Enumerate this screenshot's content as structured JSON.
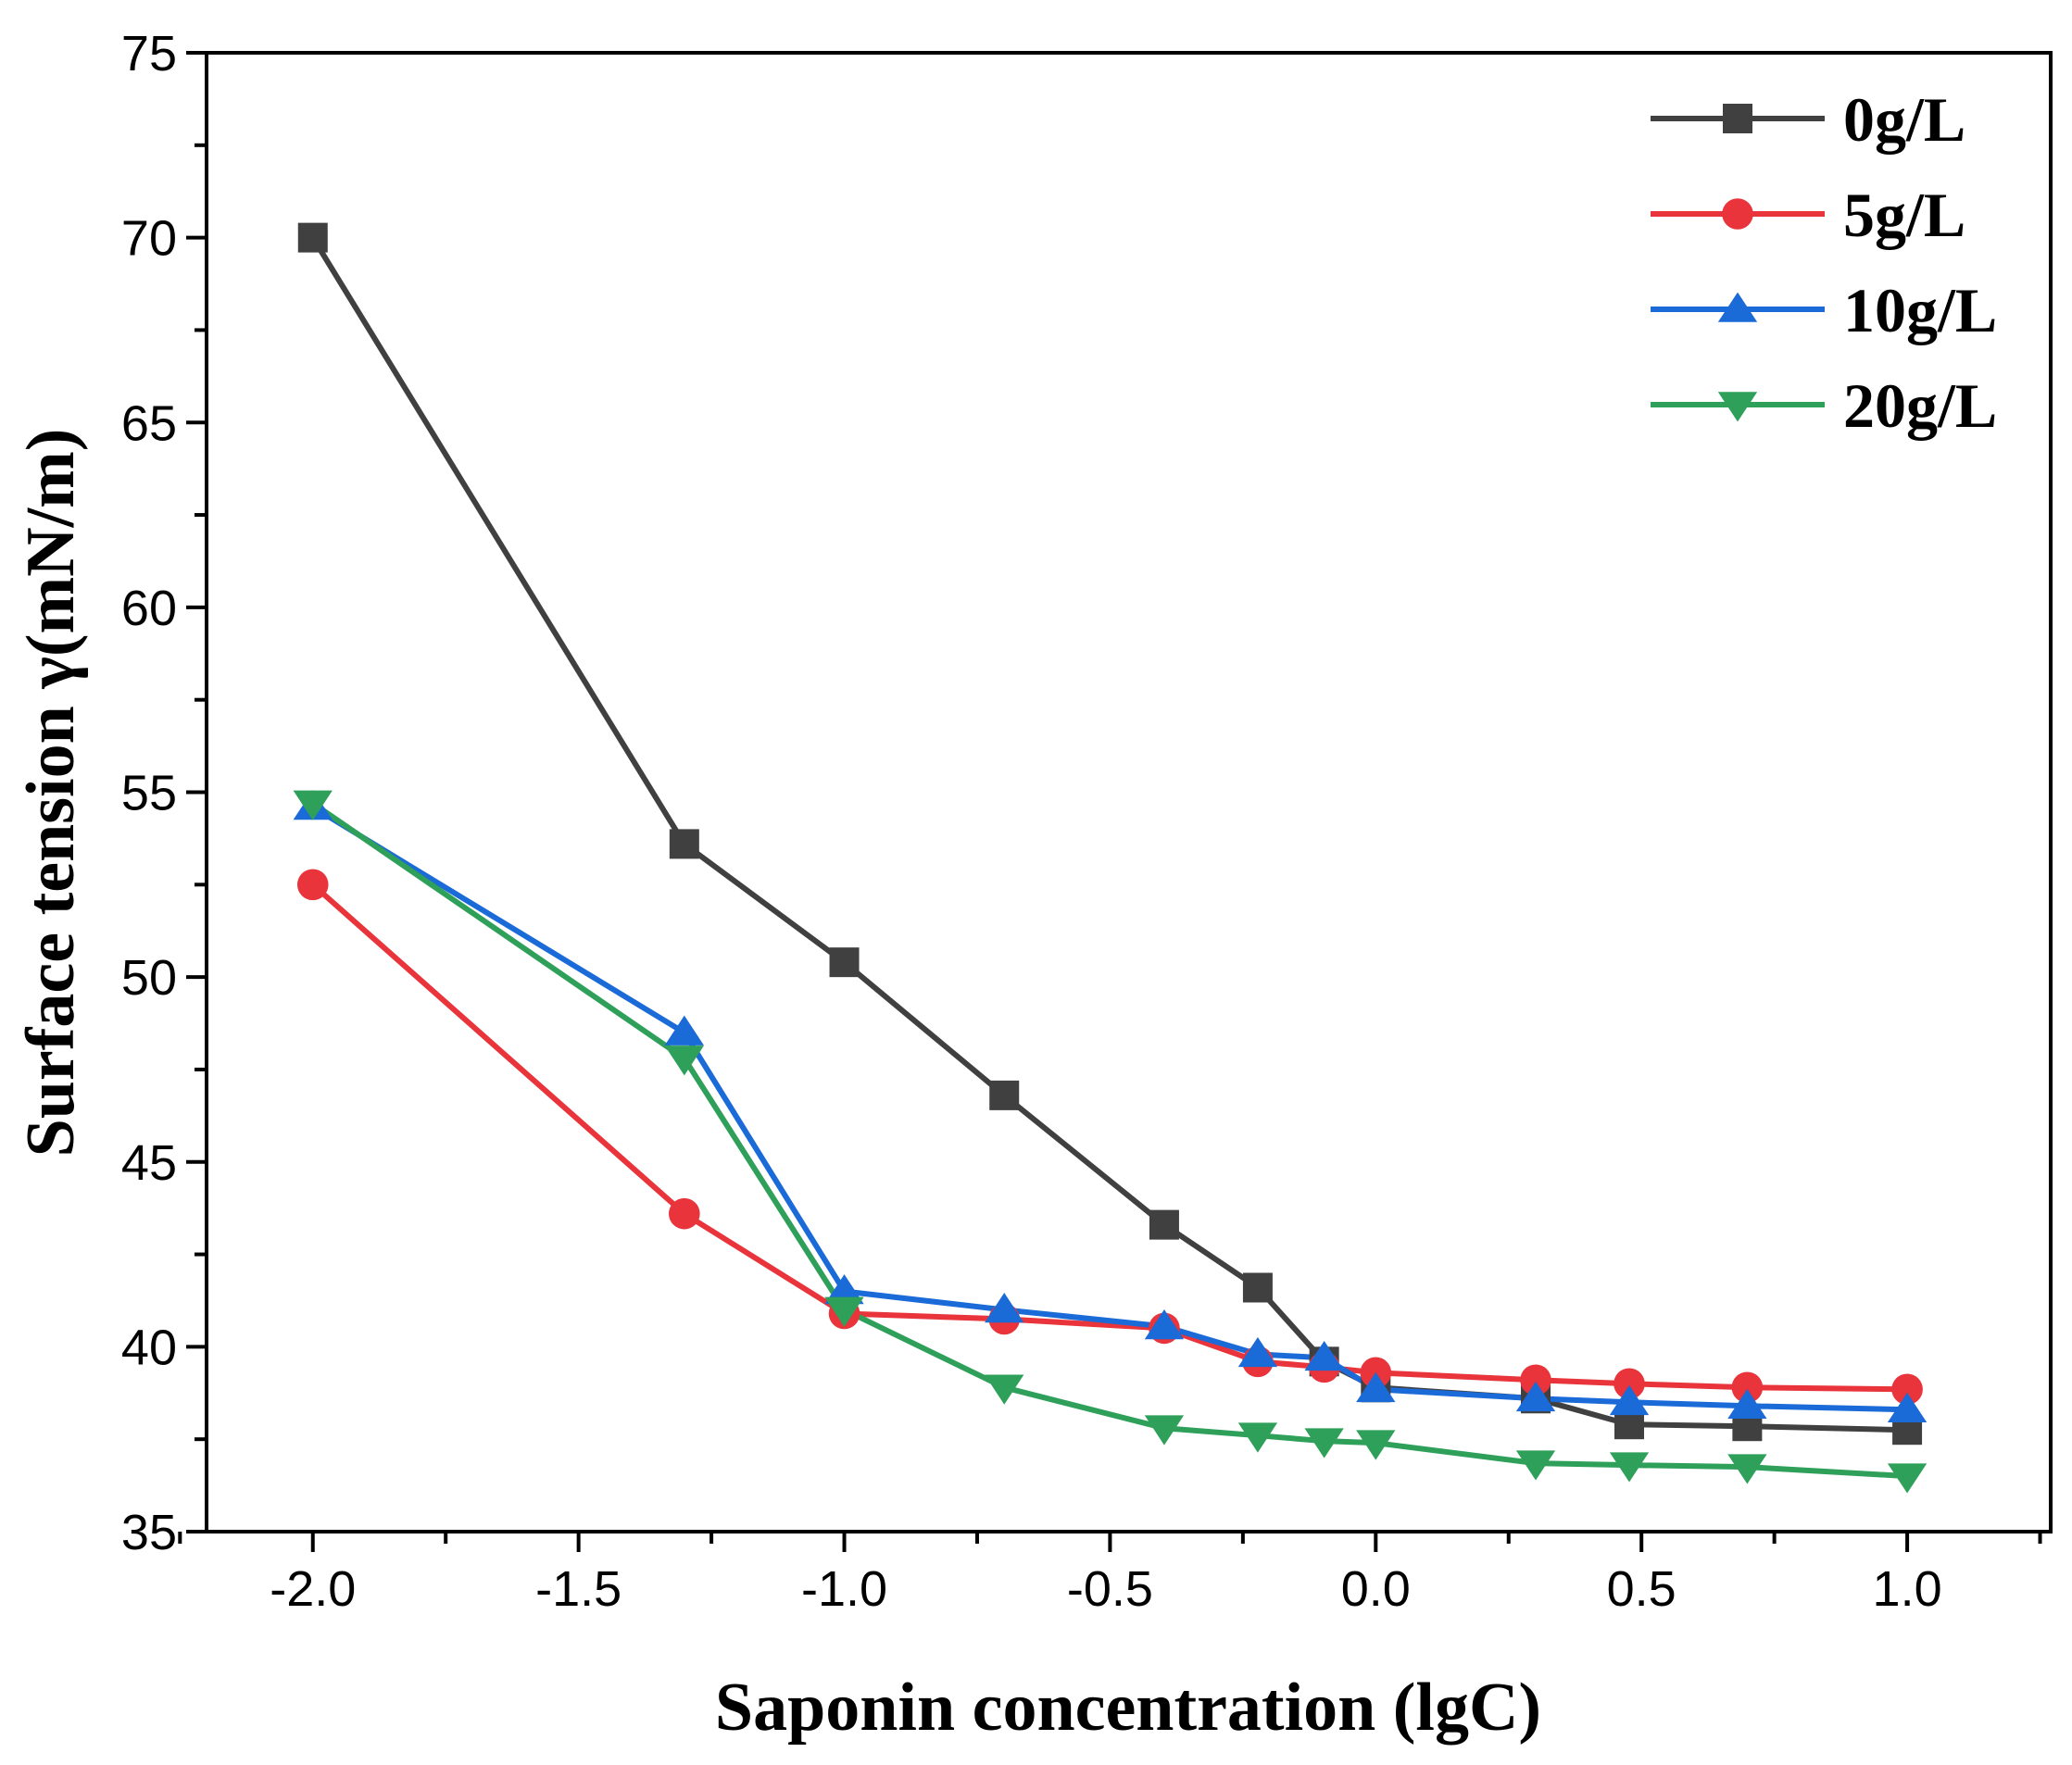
{
  "chart_data": {
    "type": "line",
    "title": "",
    "xlabel": "Saponin concentration (lgC)",
    "ylabel": "Surface tension γ(mN/m)",
    "xlim": [
      -2.2,
      1.27
    ],
    "ylim": [
      35,
      75
    ],
    "xticks": [
      -2.0,
      -1.5,
      -1.0,
      -0.5,
      0.0,
      0.5,
      1.0
    ],
    "xtick_labels": [
      "-2.0",
      "-1.5",
      "-1.0",
      "-0.5",
      "0.0",
      "0.5",
      "1.0"
    ],
    "yticks": [
      35,
      40,
      45,
      50,
      55,
      60,
      65,
      70,
      75
    ],
    "ytick_labels": [
      "35",
      "40",
      "45",
      "50",
      "55",
      "60",
      "65",
      "70",
      "75"
    ],
    "grid": false,
    "legend_position": "top-right",
    "x": [
      -2.0,
      -1.301,
      -1.0,
      -0.699,
      -0.398,
      -0.222,
      -0.097,
      0.0,
      0.301,
      0.477,
      0.699,
      1.0
    ],
    "series": [
      {
        "name": "0g/L",
        "color": "#404040",
        "marker": "square",
        "values": [
          70.0,
          53.6,
          50.4,
          46.8,
          43.3,
          41.6,
          39.6,
          38.9,
          38.6,
          37.9,
          37.85,
          37.75
        ]
      },
      {
        "name": "5g/L",
        "color": "#e8343a",
        "marker": "circle",
        "values": [
          52.5,
          43.6,
          40.9,
          40.75,
          40.5,
          39.6,
          39.45,
          39.3,
          39.1,
          39.0,
          38.9,
          38.85
        ]
      },
      {
        "name": "10g/L",
        "color": "#1a6ad8",
        "marker": "triangle-up",
        "values": [
          54.6,
          48.5,
          41.5,
          41.0,
          40.55,
          39.8,
          39.7,
          38.85,
          38.6,
          38.5,
          38.4,
          38.3
        ]
      },
      {
        "name": "20g/L",
        "color": "#2ea05a",
        "marker": "triangle-down",
        "values": [
          54.7,
          47.8,
          41.0,
          38.9,
          37.8,
          37.6,
          37.45,
          37.4,
          36.85,
          36.8,
          36.75,
          36.5
        ]
      }
    ]
  }
}
